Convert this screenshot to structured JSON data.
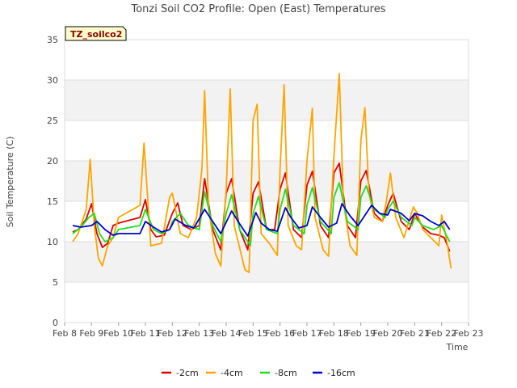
{
  "chart_data": {
    "type": "line",
    "title": "Tonzi Soil CO2 Profile: Open (East) Temperatures",
    "xlabel": "Time",
    "ylabel": "Soil Temperature (C)",
    "badge": "TZ_soilco2",
    "xlim": [
      8,
      23
    ],
    "ylim": [
      0,
      35
    ],
    "x_ticks": [
      "Feb 8",
      "Feb 9",
      "Feb 10",
      "Feb 11",
      "Feb 12",
      "Feb 13",
      "Feb 14",
      "Feb 15",
      "Feb 16",
      "Feb 17",
      "Feb 18",
      "Feb 19",
      "Feb 20",
      "Feb 21",
      "Feb 22",
      "Feb 23"
    ],
    "y_ticks": [
      0,
      5,
      10,
      15,
      20,
      25,
      30,
      35
    ],
    "grid": "horizontal bands",
    "legend_position": "bottom",
    "series": [
      {
        "name": "-2cm",
        "color": "#dd0000",
        "x": [
          8.3,
          8.5,
          8.8,
          9.0,
          9.2,
          9.4,
          9.6,
          9.8,
          10.0,
          10.8,
          11.0,
          11.2,
          11.4,
          11.7,
          12.0,
          12.2,
          12.4,
          12.7,
          13.0,
          13.2,
          13.5,
          13.8,
          14.0,
          14.2,
          14.5,
          14.8,
          15.0,
          15.2,
          15.5,
          15.8,
          16.0,
          16.2,
          16.5,
          16.8,
          17.0,
          17.2,
          17.5,
          17.8,
          18.0,
          18.2,
          18.5,
          18.8,
          19.0,
          19.2,
          19.5,
          19.8,
          20.0,
          20.2,
          20.5,
          20.8,
          21.0,
          21.3,
          21.6,
          21.9,
          22.1,
          22.3
        ],
        "y": [
          11.2,
          11.5,
          12.8,
          14.7,
          11.0,
          9.3,
          9.8,
          12.0,
          12.3,
          13.0,
          15.2,
          11.5,
          10.6,
          10.8,
          13.5,
          14.8,
          12.0,
          11.5,
          12.0,
          17.8,
          11.5,
          9.0,
          16.0,
          17.8,
          11.5,
          9.0,
          16.0,
          17.4,
          11.5,
          11.5,
          16.5,
          18.5,
          11.5,
          10.5,
          17.0,
          18.7,
          12.0,
          10.5,
          18.5,
          19.7,
          12.0,
          10.5,
          17.5,
          18.8,
          13.5,
          12.5,
          14.5,
          16.0,
          12.5,
          11.5,
          13.5,
          11.8,
          11.0,
          10.8,
          10.5,
          8.8
        ]
      },
      {
        "name": "-4cm",
        "color": "#ffa500",
        "x": [
          8.3,
          8.5,
          8.8,
          8.95,
          9.1,
          9.25,
          9.4,
          9.6,
          9.8,
          10.0,
          10.8,
          10.95,
          11.2,
          11.6,
          11.9,
          12.0,
          12.3,
          12.6,
          12.9,
          13.1,
          13.2,
          13.35,
          13.6,
          13.8,
          14.0,
          14.15,
          14.3,
          14.7,
          14.85,
          15.0,
          15.15,
          15.3,
          15.6,
          15.9,
          16.0,
          16.15,
          16.3,
          16.6,
          16.8,
          17.0,
          17.2,
          17.3,
          17.6,
          17.8,
          18.0,
          18.2,
          18.35,
          18.6,
          18.85,
          19.0,
          19.15,
          19.3,
          19.5,
          19.8,
          19.95,
          20.1,
          20.3,
          20.6,
          20.95,
          21.1,
          21.3,
          21.6,
          21.9,
          22.0,
          22.2,
          22.35
        ],
        "y": [
          10.0,
          11.0,
          14.0,
          20.2,
          12.0,
          8.0,
          7.0,
          9.5,
          10.5,
          13.0,
          14.5,
          22.2,
          9.5,
          9.8,
          15.5,
          16.0,
          11.0,
          10.5,
          13.0,
          19.0,
          28.7,
          14.0,
          8.5,
          7.0,
          16.5,
          28.9,
          12.0,
          6.5,
          6.2,
          25.0,
          27.0,
          11.0,
          9.8,
          8.3,
          19.0,
          29.4,
          12.0,
          9.5,
          9.0,
          20.0,
          26.5,
          13.0,
          9.0,
          8.2,
          20.5,
          30.8,
          15.0,
          9.5,
          8.3,
          22.5,
          26.6,
          16.0,
          13.0,
          12.5,
          15.0,
          18.5,
          13.0,
          10.5,
          14.3,
          13.5,
          11.5,
          10.5,
          9.5,
          13.3,
          10.0,
          6.7
        ]
      },
      {
        "name": "-8cm",
        "color": "#22dd22",
        "x": [
          8.3,
          8.6,
          8.9,
          9.1,
          9.3,
          9.5,
          9.8,
          10.0,
          10.8,
          11.0,
          11.3,
          11.6,
          11.9,
          12.0,
          12.3,
          12.6,
          13.0,
          13.2,
          13.5,
          13.8,
          14.0,
          14.2,
          14.5,
          14.9,
          15.0,
          15.2,
          15.5,
          15.9,
          16.0,
          16.2,
          16.5,
          16.9,
          17.0,
          17.2,
          17.5,
          17.9,
          18.0,
          18.2,
          18.5,
          18.9,
          19.0,
          19.2,
          19.5,
          19.9,
          20.0,
          20.2,
          20.5,
          20.9,
          21.0,
          21.3,
          21.7,
          22.0,
          22.3
        ],
        "y": [
          11.0,
          11.8,
          13.0,
          13.5,
          11.0,
          10.0,
          10.5,
          11.5,
          12.0,
          14.0,
          11.5,
          11.0,
          11.5,
          12.5,
          13.5,
          12.0,
          11.5,
          16.2,
          12.0,
          10.0,
          13.5,
          15.8,
          11.5,
          9.5,
          13.5,
          15.6,
          11.5,
          11.0,
          14.0,
          16.5,
          12.0,
          11.0,
          14.5,
          16.7,
          12.5,
          11.0,
          15.5,
          17.3,
          12.5,
          11.5,
          15.5,
          16.9,
          14.0,
          13.0,
          14.0,
          15.0,
          13.0,
          12.0,
          13.0,
          12.0,
          11.5,
          12.0,
          10.0
        ]
      },
      {
        "name": "-16cm",
        "color": "#0000cc",
        "x": [
          8.3,
          8.6,
          9.0,
          9.2,
          9.5,
          9.8,
          10.0,
          10.8,
          11.0,
          11.3,
          11.6,
          11.9,
          12.1,
          12.5,
          12.8,
          13.2,
          13.5,
          13.8,
          14.2,
          14.5,
          14.8,
          15.1,
          15.3,
          15.6,
          15.9,
          16.2,
          16.4,
          16.7,
          17.0,
          17.2,
          17.5,
          17.8,
          18.1,
          18.3,
          18.6,
          18.9,
          19.1,
          19.4,
          19.7,
          20.0,
          20.1,
          20.5,
          20.8,
          21.0,
          21.3,
          21.6,
          21.9,
          22.1,
          22.3
        ],
        "y": [
          12.0,
          11.8,
          12.0,
          12.5,
          11.5,
          10.8,
          11.0,
          11.0,
          12.5,
          11.8,
          11.2,
          11.5,
          12.8,
          12.0,
          11.7,
          14.0,
          12.5,
          11.0,
          13.8,
          12.2,
          10.7,
          13.6,
          12.3,
          11.5,
          11.3,
          14.2,
          13.0,
          11.7,
          12.0,
          14.3,
          13.0,
          11.8,
          12.3,
          14.7,
          13.2,
          12.0,
          13.0,
          14.5,
          13.5,
          13.3,
          14.0,
          13.5,
          12.6,
          13.5,
          13.2,
          12.5,
          12.0,
          12.5,
          11.5
        ]
      }
    ]
  }
}
